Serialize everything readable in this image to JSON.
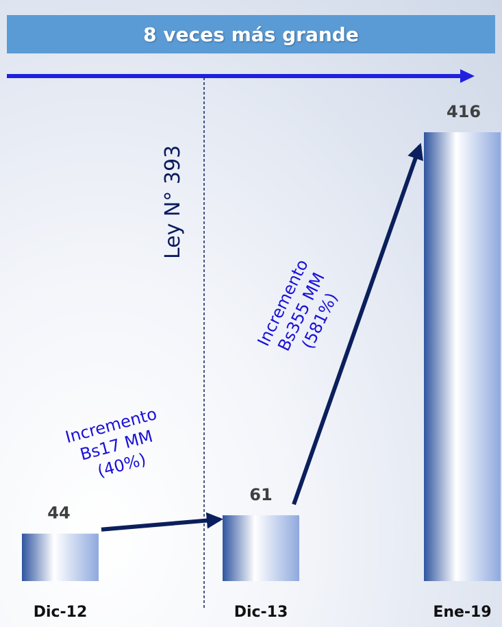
{
  "banner": {
    "title": "8 veces más grande"
  },
  "law_label": "Ley N° 393",
  "chart_data": {
    "type": "bar",
    "categories": [
      "Dic-12",
      "Dic-13",
      "Ene-19"
    ],
    "values": [
      44,
      61,
      416
    ],
    "title": "",
    "xlabel": "",
    "ylabel": "",
    "ylim": [
      0,
      416
    ],
    "annotations": [
      {
        "from": "Dic-12",
        "to": "Dic-13",
        "lines": [
          "Incremento",
          "Bs17 MM",
          "(40%)"
        ]
      },
      {
        "from": "Dic-13",
        "to": "Ene-19",
        "lines": [
          "Incremento",
          "Bs355 MM",
          "(581%)"
        ]
      }
    ]
  },
  "colors": {
    "banner": "#5b9bd5",
    "bar_dark": "#2f55a0",
    "bar_light": "#8fa9de",
    "arrow": "#0b1f5c",
    "timeline": "#1f1fe0",
    "annotation": "#1a10d8"
  }
}
